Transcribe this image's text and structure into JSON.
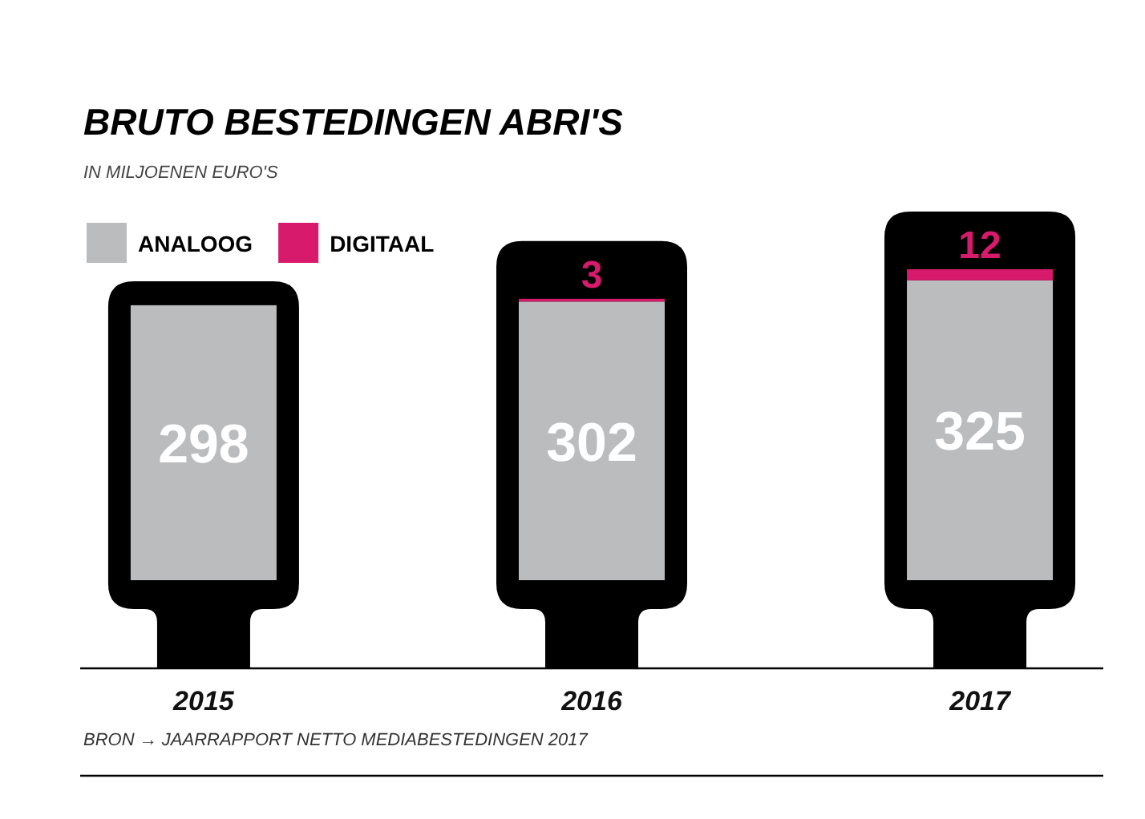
{
  "chart_data": {
    "type": "bar",
    "title": "BRUTO BESTEDINGEN ABRI'S",
    "subtitle": "IN MILJOENEN EURO'S",
    "categories": [
      "2015",
      "2016",
      "2017"
    ],
    "stacked": true,
    "series": [
      {
        "name": "ANALOOG",
        "color": "#bbbcbe",
        "values": [
          298,
          302,
          325
        ]
      },
      {
        "name": "DIGITAAL",
        "color": "#d81a6c",
        "values": [
          null,
          3,
          12
        ]
      }
    ],
    "data_labels": true,
    "legend": "top left",
    "tick_labels": "x",
    "annotations": [
      "BRON → JAARRAPPORT NETTO MEDIABESTEDINGEN 2017"
    ]
  }
}
